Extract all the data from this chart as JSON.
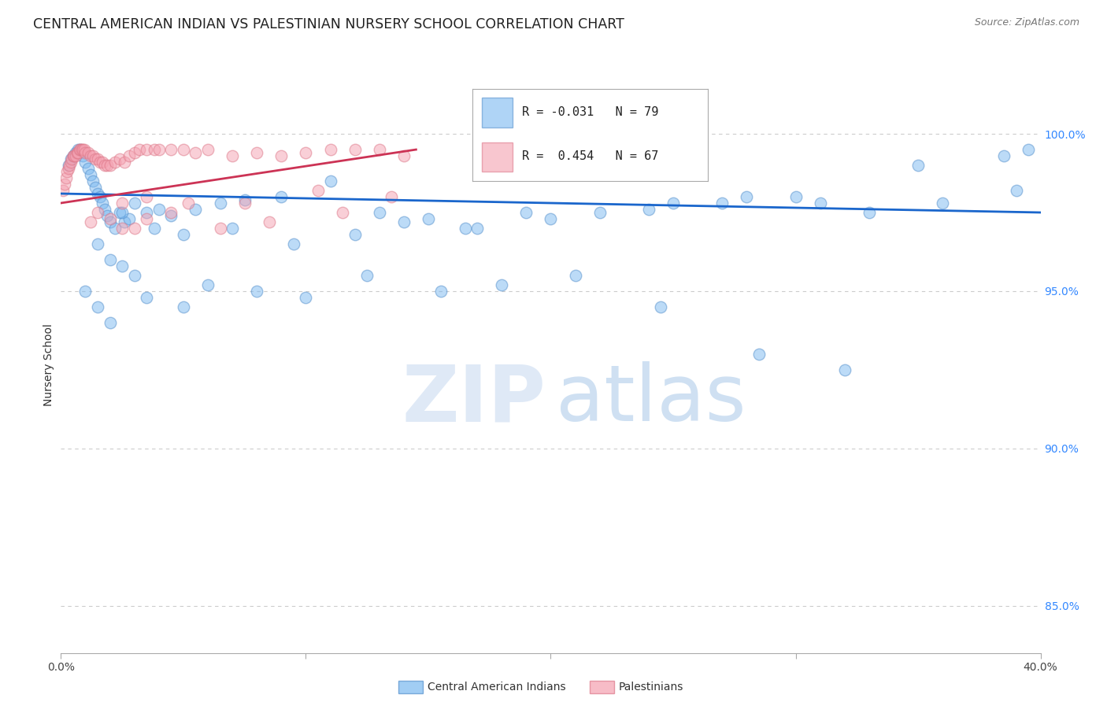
{
  "title": "CENTRAL AMERICAN INDIAN VS PALESTINIAN NURSERY SCHOOL CORRELATION CHART",
  "source": "Source: ZipAtlas.com",
  "ylabel": "Nursery School",
  "y_tick_labels": [
    "85.0%",
    "90.0%",
    "95.0%",
    "100.0%"
  ],
  "y_tick_values": [
    85.0,
    90.0,
    95.0,
    100.0
  ],
  "xlim": [
    0.0,
    40.0
  ],
  "ylim": [
    83.5,
    101.8
  ],
  "legend_blue_label": "Central American Indians",
  "legend_pink_label": "Palestinians",
  "watermark_zip": "ZIP",
  "watermark_atlas": "atlas",
  "blue_scatter_x": [
    0.3,
    0.4,
    0.5,
    0.6,
    0.7,
    0.8,
    0.9,
    1.0,
    1.1,
    1.2,
    1.3,
    1.4,
    1.5,
    1.6,
    1.7,
    1.8,
    1.9,
    2.0,
    2.2,
    2.4,
    2.6,
    2.8,
    3.0,
    3.5,
    4.0,
    4.5,
    5.5,
    6.5,
    7.5,
    9.0,
    11.0,
    13.0,
    15.0,
    17.0,
    19.0,
    22.0,
    25.0,
    28.0,
    31.0,
    35.0,
    38.5,
    39.5,
    2.5,
    3.8,
    5.0,
    7.0,
    9.5,
    12.0,
    14.0,
    16.5,
    20.0,
    24.0,
    27.0,
    30.0,
    33.0,
    36.0,
    39.0,
    1.5,
    2.0,
    2.5,
    3.0,
    1.0,
    1.5,
    2.0,
    3.5,
    5.0,
    6.0,
    8.0,
    10.0,
    12.5,
    15.5,
    18.0,
    21.0,
    24.5,
    28.5,
    32.0
  ],
  "blue_scatter_y": [
    99.0,
    99.2,
    99.3,
    99.4,
    99.5,
    99.5,
    99.3,
    99.1,
    98.9,
    98.7,
    98.5,
    98.3,
    98.1,
    98.0,
    97.8,
    97.6,
    97.4,
    97.2,
    97.0,
    97.5,
    97.2,
    97.3,
    97.8,
    97.5,
    97.6,
    97.4,
    97.6,
    97.8,
    97.9,
    98.0,
    98.5,
    97.5,
    97.3,
    97.0,
    97.5,
    97.5,
    97.8,
    98.0,
    97.8,
    99.0,
    99.3,
    99.5,
    97.5,
    97.0,
    96.8,
    97.0,
    96.5,
    96.8,
    97.2,
    97.0,
    97.3,
    97.6,
    97.8,
    98.0,
    97.5,
    97.8,
    98.2,
    96.5,
    96.0,
    95.8,
    95.5,
    95.0,
    94.5,
    94.0,
    94.8,
    94.5,
    95.2,
    95.0,
    94.8,
    95.5,
    95.0,
    95.2,
    95.5,
    94.5,
    93.0,
    92.5
  ],
  "pink_scatter_x": [
    0.1,
    0.15,
    0.2,
    0.25,
    0.3,
    0.35,
    0.4,
    0.45,
    0.5,
    0.55,
    0.6,
    0.65,
    0.7,
    0.75,
    0.8,
    0.85,
    0.9,
    0.95,
    1.0,
    1.1,
    1.2,
    1.3,
    1.4,
    1.5,
    1.6,
    1.7,
    1.8,
    1.9,
    2.0,
    2.2,
    2.4,
    2.6,
    2.8,
    3.0,
    3.2,
    3.5,
    3.8,
    4.0,
    4.5,
    5.0,
    5.5,
    6.0,
    7.0,
    8.0,
    9.0,
    10.0,
    11.0,
    12.0,
    13.0,
    14.0,
    2.5,
    3.5,
    5.2,
    7.5,
    10.5,
    13.5,
    1.2,
    1.5,
    2.0,
    2.5,
    3.0,
    3.5,
    4.5,
    6.5,
    8.5,
    11.5
  ],
  "pink_scatter_y": [
    98.2,
    98.4,
    98.6,
    98.8,
    98.9,
    99.0,
    99.1,
    99.2,
    99.3,
    99.3,
    99.3,
    99.4,
    99.4,
    99.5,
    99.5,
    99.5,
    99.5,
    99.5,
    99.4,
    99.4,
    99.3,
    99.3,
    99.2,
    99.2,
    99.1,
    99.1,
    99.0,
    99.0,
    99.0,
    99.1,
    99.2,
    99.1,
    99.3,
    99.4,
    99.5,
    99.5,
    99.5,
    99.5,
    99.5,
    99.5,
    99.4,
    99.5,
    99.3,
    99.4,
    99.3,
    99.4,
    99.5,
    99.5,
    99.5,
    99.3,
    97.8,
    98.0,
    97.8,
    97.8,
    98.2,
    98.0,
    97.2,
    97.5,
    97.3,
    97.0,
    97.0,
    97.3,
    97.5,
    97.0,
    97.2,
    97.5
  ],
  "blue_line_x": [
    0.0,
    40.0
  ],
  "blue_line_y": [
    98.1,
    97.5
  ],
  "pink_line_x": [
    0.0,
    14.5
  ],
  "pink_line_y": [
    97.8,
    99.5
  ],
  "scatter_size": 110,
  "blue_color": "#7ab8f0",
  "blue_edge_color": "#5590cc",
  "blue_line_color": "#1a66cc",
  "pink_color": "#f4a0b0",
  "pink_edge_color": "#dd7788",
  "pink_line_color": "#cc3355",
  "grid_color": "#cccccc",
  "background_color": "#ffffff",
  "title_fontsize": 12.5,
  "axis_label_fontsize": 10,
  "tick_label_fontsize": 10,
  "right_tick_color": "#3388ff"
}
